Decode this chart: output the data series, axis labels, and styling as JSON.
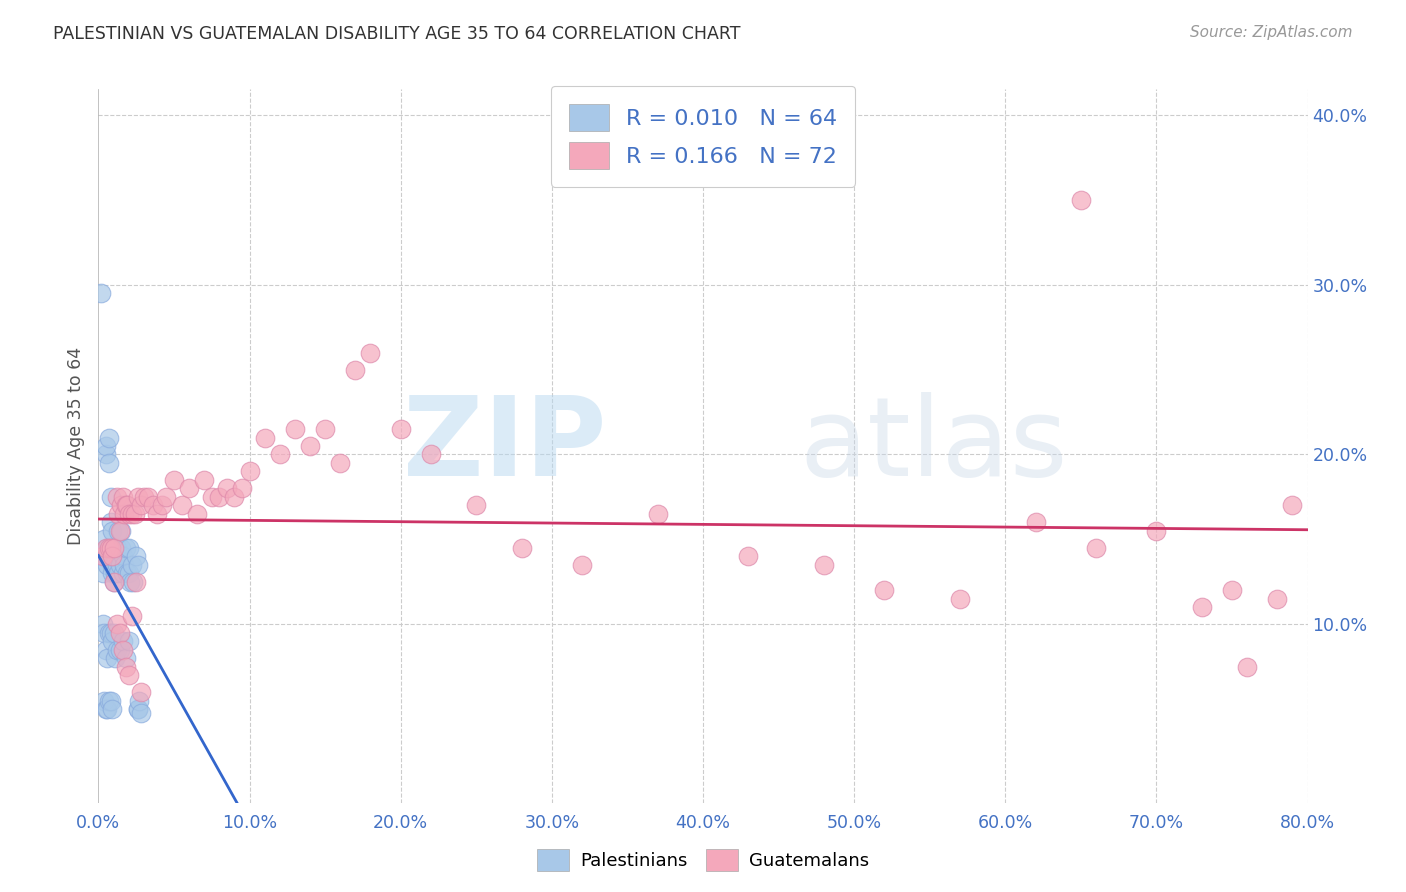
{
  "title": "PALESTINIAN VS GUATEMALAN DISABILITY AGE 35 TO 64 CORRELATION CHART",
  "source": "Source: ZipAtlas.com",
  "xlim": [
    0.0,
    0.8
  ],
  "ylim": [
    -0.005,
    0.415
  ],
  "ylabel": "Disability Age 35 to 64",
  "palestinian_color": "#a8c8e8",
  "guatemalan_color": "#f4a8bb",
  "palestinian_line_color": "#3366cc",
  "guatemalan_line_color": "#cc3366",
  "R_palestinian": 0.01,
  "N_palestinian": 64,
  "R_guatemalan": 0.166,
  "N_guatemalan": 72,
  "background_color": "#ffffff",
  "grid_color": "#cccccc",
  "pal_x": [
    0.002,
    0.003,
    0.004,
    0.005,
    0.005,
    0.005,
    0.006,
    0.006,
    0.007,
    0.007,
    0.008,
    0.008,
    0.008,
    0.009,
    0.009,
    0.009,
    0.01,
    0.01,
    0.01,
    0.011,
    0.011,
    0.012,
    0.012,
    0.013,
    0.013,
    0.014,
    0.015,
    0.015,
    0.016,
    0.016,
    0.017,
    0.018,
    0.019,
    0.02,
    0.02,
    0.021,
    0.022,
    0.023,
    0.025,
    0.026,
    0.003,
    0.004,
    0.005,
    0.006,
    0.007,
    0.008,
    0.009,
    0.01,
    0.011,
    0.012,
    0.014,
    0.016,
    0.018,
    0.02,
    0.004,
    0.005,
    0.006,
    0.007,
    0.008,
    0.009,
    0.026,
    0.026,
    0.027,
    0.028
  ],
  "pal_y": [
    0.295,
    0.13,
    0.15,
    0.2,
    0.205,
    0.14,
    0.145,
    0.135,
    0.195,
    0.21,
    0.175,
    0.16,
    0.145,
    0.135,
    0.13,
    0.155,
    0.135,
    0.125,
    0.145,
    0.13,
    0.14,
    0.145,
    0.135,
    0.155,
    0.13,
    0.135,
    0.145,
    0.155,
    0.14,
    0.13,
    0.135,
    0.145,
    0.13,
    0.13,
    0.145,
    0.125,
    0.135,
    0.125,
    0.14,
    0.135,
    0.1,
    0.095,
    0.085,
    0.08,
    0.095,
    0.095,
    0.09,
    0.095,
    0.08,
    0.085,
    0.085,
    0.09,
    0.08,
    0.09,
    0.055,
    0.05,
    0.05,
    0.055,
    0.055,
    0.05,
    0.05,
    0.05,
    0.055,
    0.048
  ],
  "guat_x": [
    0.003,
    0.005,
    0.007,
    0.008,
    0.009,
    0.01,
    0.012,
    0.013,
    0.014,
    0.015,
    0.016,
    0.017,
    0.018,
    0.019,
    0.02,
    0.022,
    0.024,
    0.026,
    0.028,
    0.03,
    0.033,
    0.036,
    0.039,
    0.042,
    0.045,
    0.05,
    0.055,
    0.06,
    0.065,
    0.07,
    0.075,
    0.08,
    0.085,
    0.09,
    0.095,
    0.1,
    0.11,
    0.12,
    0.13,
    0.14,
    0.15,
    0.16,
    0.17,
    0.18,
    0.2,
    0.22,
    0.25,
    0.28,
    0.32,
    0.37,
    0.43,
    0.48,
    0.52,
    0.57,
    0.62,
    0.65,
    0.66,
    0.7,
    0.73,
    0.75,
    0.76,
    0.78,
    0.79,
    0.01,
    0.012,
    0.014,
    0.016,
    0.018,
    0.02,
    0.022,
    0.025,
    0.028
  ],
  "guat_y": [
    0.14,
    0.145,
    0.145,
    0.145,
    0.14,
    0.145,
    0.175,
    0.165,
    0.155,
    0.17,
    0.175,
    0.165,
    0.17,
    0.17,
    0.165,
    0.165,
    0.165,
    0.175,
    0.17,
    0.175,
    0.175,
    0.17,
    0.165,
    0.17,
    0.175,
    0.185,
    0.17,
    0.18,
    0.165,
    0.185,
    0.175,
    0.175,
    0.18,
    0.175,
    0.18,
    0.19,
    0.21,
    0.2,
    0.215,
    0.205,
    0.215,
    0.195,
    0.25,
    0.26,
    0.215,
    0.2,
    0.17,
    0.145,
    0.135,
    0.165,
    0.14,
    0.135,
    0.12,
    0.115,
    0.16,
    0.35,
    0.145,
    0.155,
    0.11,
    0.12,
    0.075,
    0.115,
    0.17,
    0.125,
    0.1,
    0.095,
    0.085,
    0.075,
    0.07,
    0.105,
    0.125,
    0.06
  ]
}
